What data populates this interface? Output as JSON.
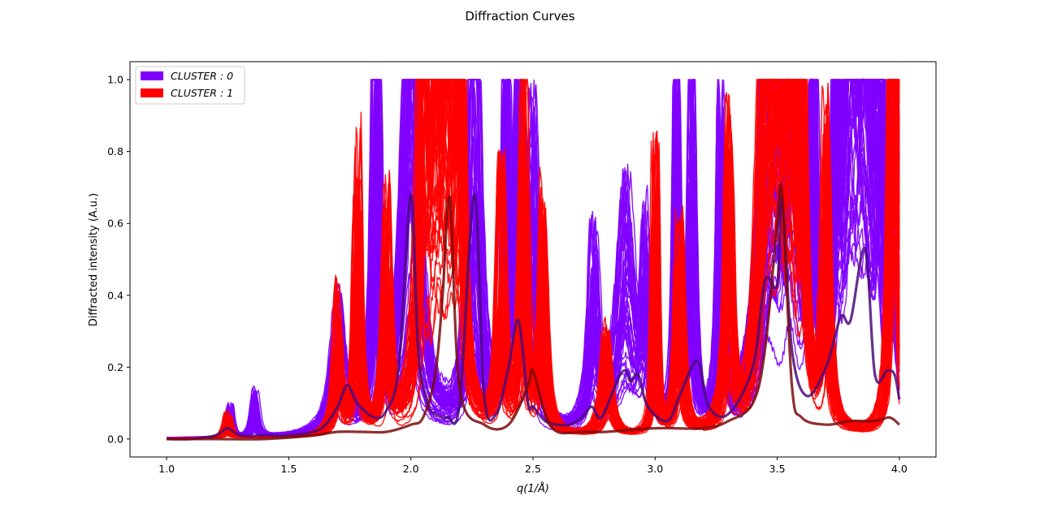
{
  "figure": {
    "suptitle": "Diffraction Curves"
  },
  "chart_data": {
    "type": "line",
    "title": "Diffraction Curves",
    "xlabel": "q(1/Å)",
    "ylabel": "Diffracted intensity (A.u.)",
    "xlim": [
      0.85,
      4.15
    ],
    "ylim": [
      -0.05,
      1.05
    ],
    "xticks": [
      1.0,
      1.5,
      2.0,
      2.5,
      3.0,
      3.5,
      4.0
    ],
    "xtick_labels": [
      "1.0",
      "1.5",
      "2.0",
      "2.5",
      "3.0",
      "3.5",
      "4.0"
    ],
    "yticks": [
      0.0,
      0.2,
      0.4,
      0.6,
      0.8,
      1.0
    ],
    "ytick_labels": [
      "0.0",
      "0.2",
      "0.4",
      "0.6",
      "0.8",
      "1.0"
    ],
    "grid": false,
    "legend_position": "top-left",
    "legend": [
      {
        "label": "CLUSTER : 0",
        "color": "#7f00ff"
      },
      {
        "label": "CLUSTER : 1",
        "color": "#ff0000"
      }
    ],
    "series": [
      {
        "name": "CLUSTER : 0",
        "color": "#7f00ff",
        "style": "mean",
        "x": [
          1.0,
          1.1,
          1.2,
          1.25,
          1.3,
          1.4,
          1.5,
          1.6,
          1.65,
          1.7,
          1.74,
          1.78,
          1.85,
          1.9,
          1.95,
          2.0,
          2.03,
          2.07,
          2.1,
          2.15,
          2.2,
          2.26,
          2.3,
          2.35,
          2.4,
          2.44,
          2.48,
          2.5,
          2.55,
          2.6,
          2.65,
          2.7,
          2.74,
          2.78,
          2.85,
          2.88,
          2.9,
          2.93,
          2.97,
          3.05,
          3.1,
          3.15,
          3.18,
          3.22,
          3.3,
          3.4,
          3.45,
          3.5,
          3.52,
          3.56,
          3.62,
          3.7,
          3.76,
          3.8,
          3.86,
          3.9,
          3.95,
          3.98,
          4.0
        ],
        "y": [
          0.0,
          0.0,
          0.01,
          0.03,
          0.01,
          0.01,
          0.01,
          0.02,
          0.04,
          0.09,
          0.15,
          0.1,
          0.06,
          0.08,
          0.2,
          0.68,
          0.25,
          0.1,
          0.07,
          0.06,
          0.1,
          0.68,
          0.12,
          0.07,
          0.2,
          0.33,
          0.1,
          0.09,
          0.05,
          0.04,
          0.04,
          0.06,
          0.09,
          0.06,
          0.17,
          0.19,
          0.16,
          0.18,
          0.09,
          0.05,
          0.12,
          0.2,
          0.21,
          0.09,
          0.07,
          0.2,
          0.44,
          0.43,
          0.67,
          0.25,
          0.12,
          0.2,
          0.34,
          0.33,
          0.53,
          0.18,
          0.19,
          0.18,
          0.11
        ]
      },
      {
        "name": "CLUSTER : 1",
        "color": "#ff0000",
        "style": "mean",
        "x": [
          1.0,
          1.2,
          1.4,
          1.6,
          1.7,
          1.8,
          1.9,
          2.0,
          2.05,
          2.1,
          2.13,
          2.16,
          2.2,
          2.3,
          2.4,
          2.48,
          2.5,
          2.55,
          2.6,
          2.7,
          2.8,
          3.0,
          3.2,
          3.3,
          3.4,
          3.45,
          3.5,
          3.52,
          3.56,
          3.6,
          3.7,
          3.8,
          3.9,
          3.96,
          4.0
        ],
        "y": [
          0.0,
          0.0,
          0.0,
          0.01,
          0.02,
          0.02,
          0.02,
          0.04,
          0.06,
          0.18,
          0.4,
          0.67,
          0.14,
          0.04,
          0.04,
          0.15,
          0.19,
          0.07,
          0.02,
          0.02,
          0.02,
          0.03,
          0.03,
          0.05,
          0.1,
          0.25,
          0.6,
          0.68,
          0.15,
          0.06,
          0.04,
          0.05,
          0.05,
          0.06,
          0.04
        ]
      }
    ],
    "envelope_peaks": {
      "cluster0": {
        "color": "#7f00ff",
        "peaks": [
          [
            1.26,
            0.06,
            0.01
          ],
          [
            1.36,
            0.085,
            0.012
          ],
          [
            1.7,
            0.25,
            0.03
          ],
          [
            1.86,
            0.89,
            0.015
          ],
          [
            2.0,
            1.0,
            0.035
          ],
          [
            2.26,
            1.0,
            0.025
          ],
          [
            2.39,
            0.74,
            0.012
          ],
          [
            2.44,
            0.7,
            0.015
          ],
          [
            2.5,
            0.6,
            0.02
          ],
          [
            2.75,
            0.36,
            0.02
          ],
          [
            2.88,
            0.46,
            0.04
          ],
          [
            2.96,
            0.38,
            0.015
          ],
          [
            3.09,
            0.75,
            0.01
          ],
          [
            3.15,
            0.7,
            0.012
          ],
          [
            3.27,
            0.65,
            0.012
          ],
          [
            3.47,
            1.0,
            0.04
          ],
          [
            3.56,
            1.0,
            0.03
          ],
          [
            3.65,
            0.86,
            0.012
          ],
          [
            3.74,
            0.72,
            0.012
          ],
          [
            3.8,
            1.0,
            0.03
          ],
          [
            3.86,
            1.0,
            0.03
          ],
          [
            3.92,
            0.78,
            0.015
          ],
          [
            3.98,
            0.72,
            0.02
          ]
        ]
      },
      "cluster1": {
        "color": "#ff0000",
        "peaks": [
          [
            1.25,
            0.05,
            0.012
          ],
          [
            1.7,
            0.28,
            0.015
          ],
          [
            1.78,
            0.54,
            0.012
          ],
          [
            1.9,
            0.45,
            0.015
          ],
          [
            2.05,
            1.0,
            0.02
          ],
          [
            2.1,
            1.0,
            0.02
          ],
          [
            2.15,
            1.0,
            0.025
          ],
          [
            2.2,
            1.0,
            0.015
          ],
          [
            2.37,
            0.5,
            0.015
          ],
          [
            2.46,
            0.7,
            0.015
          ],
          [
            2.54,
            0.45,
            0.015
          ],
          [
            2.8,
            0.2,
            0.02
          ],
          [
            3.0,
            0.55,
            0.008
          ],
          [
            3.1,
            0.4,
            0.015
          ],
          [
            3.3,
            0.6,
            0.015
          ],
          [
            3.45,
            1.0,
            0.025
          ],
          [
            3.5,
            1.0,
            0.025
          ],
          [
            3.55,
            1.0,
            0.02
          ],
          [
            3.6,
            0.8,
            0.015
          ],
          [
            3.7,
            0.6,
            0.015
          ],
          [
            3.97,
            1.0,
            0.012
          ],
          [
            3.99,
            0.9,
            0.01
          ]
        ]
      }
    }
  }
}
